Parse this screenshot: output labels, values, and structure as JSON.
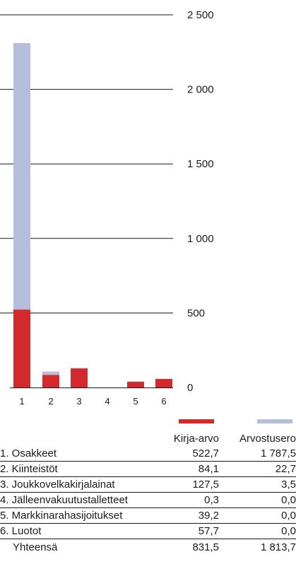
{
  "colors": {
    "kirja_arvo": "#d32a2e",
    "arvostusero": "#b6bedc",
    "axis": "#1a1a1a"
  },
  "chart_data": {
    "type": "bar",
    "stacked": true,
    "categories": [
      "1",
      "2",
      "3",
      "4",
      "5",
      "6"
    ],
    "series": [
      {
        "name": "Kirja-arvo",
        "values": [
          522.7,
          84.1,
          127.5,
          0.3,
          39.2,
          57.7
        ]
      },
      {
        "name": "Arvostusero",
        "values": [
          1787.5,
          22.7,
          3.5,
          0.0,
          0.0,
          0.0
        ]
      }
    ],
    "yticks": [
      "0",
      "500",
      "1 000",
      "1 500",
      "2 000",
      "2 500"
    ],
    "ylim": [
      0,
      2500
    ],
    "axis_side": "right",
    "grid": true
  },
  "table": {
    "headers": [
      "Kirja-arvo",
      "Arvostusero"
    ],
    "rows": [
      {
        "label": "1. Osakkeet",
        "kirja": "522,7",
        "arvo": "1 787,5"
      },
      {
        "label": "2. Kiinteistöt",
        "kirja": "84,1",
        "arvo": "22,7"
      },
      {
        "label": "3. Joukkovelkakirjalainat",
        "kirja": "127,5",
        "arvo": "3,5"
      },
      {
        "label": "4. Jälleenvakuutustalletteet",
        "kirja": "0,3",
        "arvo": "0,0"
      },
      {
        "label": "5. Markkinarahasijoitukset",
        "kirja": "39,2",
        "arvo": "0,0"
      },
      {
        "label": "6. Luotot",
        "kirja": "57,7",
        "arvo": "0,0"
      }
    ],
    "total": {
      "label": "Yhteensä",
      "kirja": "831,5",
      "arvo": "1 813,7"
    }
  }
}
